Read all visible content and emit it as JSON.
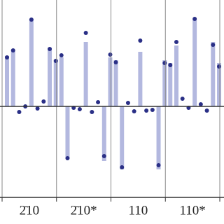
{
  "chart_data": {
    "type": "bar-dot",
    "bar_color": "#b3b8df",
    "dot_color": "#2a2f86",
    "ylim": [
      -1.3,
      1.52
    ],
    "groups": [
      {
        "label": "2̄10",
        "bars": [
          0.72,
          0.8,
          0,
          0,
          1.25,
          0,
          0,
          0.84,
          0.67
        ],
        "dots": [
          0.7,
          0.8,
          -0.08,
          0,
          1.24,
          -0.03,
          0.07,
          0.82,
          0.65
        ]
      },
      {
        "label": "2̄10*",
        "bars": [
          0.7,
          -0.74,
          0,
          0,
          0.92,
          0,
          0,
          -0.78,
          0.7
        ],
        "dots": [
          0.73,
          -0.74,
          -0.02,
          -0.04,
          1.05,
          -0.08,
          0.06,
          -0.71,
          0.74
        ]
      },
      {
        "label": "110",
        "bars": [
          0.66,
          -0.9,
          0,
          0,
          0.78,
          0,
          0,
          -0.9,
          0.66
        ],
        "dots": [
          0.63,
          -0.87,
          0.05,
          -0.07,
          0.94,
          -0.06,
          -0.05,
          -0.84,
          0.62
        ]
      },
      {
        "label": "110*",
        "bars": [
          0.62,
          0.87,
          0,
          0,
          1.25,
          0,
          0,
          0.92,
          0.62
        ],
        "dots": [
          0.59,
          0.92,
          0.11,
          -0.02,
          1.25,
          0.03,
          -0.06,
          0.88,
          0.57
        ]
      }
    ]
  }
}
